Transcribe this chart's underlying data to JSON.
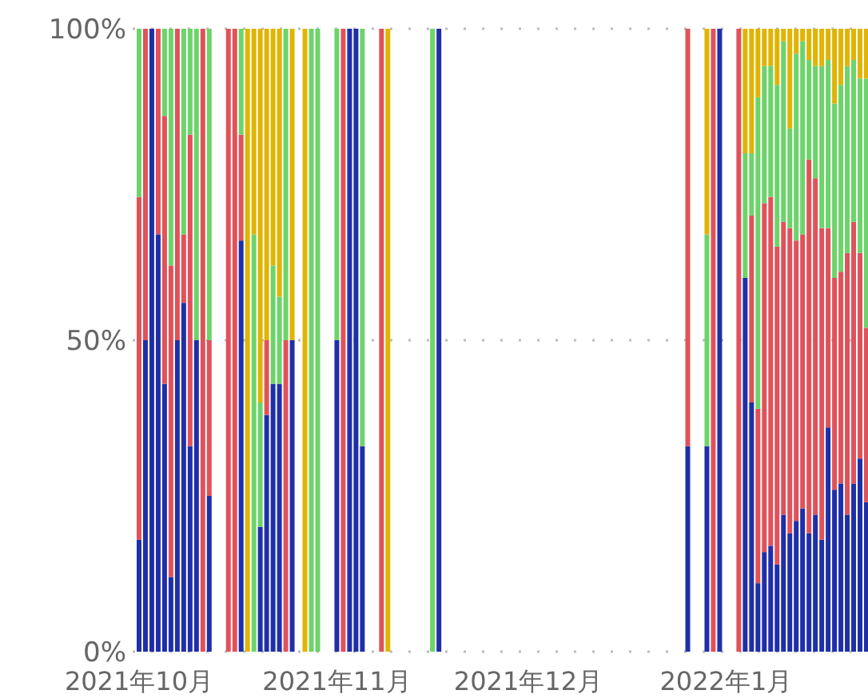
{
  "chart_data": {
    "type": "bar",
    "stacked": true,
    "grid": "y",
    "x": [
      "2021-10-01",
      "2021-10-02",
      "2021-10-03",
      "2021-10-04",
      "2021-10-05",
      "2021-10-06",
      "2021-10-07",
      "2021-10-08",
      "2021-10-09",
      "2021-10-10",
      "2021-10-11",
      "2021-10-12",
      "2021-10-15",
      "2021-10-16",
      "2021-10-17",
      "2021-10-18",
      "2021-10-19",
      "2021-10-20",
      "2021-10-21",
      "2021-10-22",
      "2021-10-23",
      "2021-10-24",
      "2021-10-25",
      "2021-10-27",
      "2021-10-28",
      "2021-10-29",
      "2021-11-01",
      "2021-11-02",
      "2021-11-03",
      "2021-11-04",
      "2021-11-05",
      "2021-11-08",
      "2021-11-09",
      "2021-11-16",
      "2021-11-17",
      "2021-12-26",
      "2021-12-29",
      "2021-12-30",
      "2021-12-31",
      "2022-01-03",
      "2022-01-04",
      "2022-01-05",
      "2022-01-06",
      "2022-01-07",
      "2022-01-08",
      "2022-01-09",
      "2022-01-10",
      "2022-01-11",
      "2022-01-12",
      "2022-01-13",
      "2022-01-14",
      "2022-01-15",
      "2022-01-16",
      "2022-01-17",
      "2022-01-18",
      "2022-01-19",
      "2022-01-20",
      "2022-01-21",
      "2022-01-22",
      "2022-01-23"
    ],
    "series": [
      {
        "color": "#1f2fa8",
        "values": [
          18,
          50,
          100,
          67,
          43,
          12,
          50,
          56,
          33,
          50,
          null,
          25,
          null,
          null,
          66,
          null,
          null,
          20,
          38,
          43,
          43,
          null,
          50,
          null,
          null,
          null,
          50,
          null,
          100,
          100,
          33,
          null,
          null,
          null,
          100,
          33,
          33,
          null,
          100,
          null,
          60,
          40,
          11,
          16,
          17,
          14,
          22,
          19,
          21,
          23,
          19,
          22,
          18,
          36,
          26,
          27,
          22,
          27,
          31,
          24
        ]
      },
      {
        "color": "#e0525a",
        "values": [
          55,
          50,
          null,
          33,
          43,
          50,
          50,
          11,
          50,
          null,
          100,
          25,
          100,
          100,
          17,
          null,
          null,
          null,
          12,
          null,
          null,
          50,
          null,
          null,
          null,
          null,
          null,
          100,
          null,
          null,
          null,
          100,
          null,
          null,
          null,
          67,
          null,
          100,
          null,
          100,
          null,
          30,
          28,
          56,
          56,
          51,
          47,
          49,
          45,
          44,
          60,
          54,
          50,
          32,
          34,
          34,
          42,
          42,
          33,
          28
        ]
      },
      {
        "color": "#6cd46a",
        "values": [
          27,
          null,
          null,
          null,
          14,
          38,
          null,
          33,
          17,
          50,
          null,
          50,
          null,
          null,
          17,
          null,
          67,
          20,
          null,
          19,
          14,
          50,
          null,
          null,
          100,
          100,
          50,
          null,
          null,
          null,
          67,
          null,
          null,
          100,
          null,
          null,
          34,
          null,
          null,
          null,
          20,
          10,
          50,
          22,
          21,
          26,
          29,
          16,
          30,
          31,
          16,
          18,
          26,
          27,
          28,
          30,
          30,
          26,
          28,
          40
        ]
      },
      {
        "color": "#e0b400",
        "values": [
          null,
          null,
          null,
          null,
          null,
          null,
          null,
          null,
          null,
          null,
          null,
          null,
          null,
          null,
          null,
          100,
          33,
          60,
          50,
          38,
          43,
          null,
          50,
          100,
          null,
          null,
          null,
          null,
          null,
          null,
          null,
          null,
          100,
          null,
          null,
          null,
          33,
          null,
          null,
          null,
          20,
          20,
          11,
          6,
          6,
          9,
          2,
          16,
          4,
          2,
          5,
          6,
          6,
          5,
          12,
          9,
          6,
          5,
          8,
          8
        ]
      }
    ],
    "xlim": [
      "2021-09-30",
      "2022-01-23T06:00"
    ],
    "xticks": [
      {
        "value": "2021-10-01",
        "label": "2021年10月"
      },
      {
        "value": "2021-11-01",
        "label": "2021年11月"
      },
      {
        "value": "2021-12-01",
        "label": "2021年12月"
      },
      {
        "value": "2022-01-01",
        "label": "2022年1月"
      }
    ],
    "ylim": [
      0,
      100
    ],
    "yticks": [
      {
        "value": 0,
        "label": "0%"
      },
      {
        "value": 50,
        "label": "50%"
      },
      {
        "value": 100,
        "label": "100%"
      }
    ]
  }
}
